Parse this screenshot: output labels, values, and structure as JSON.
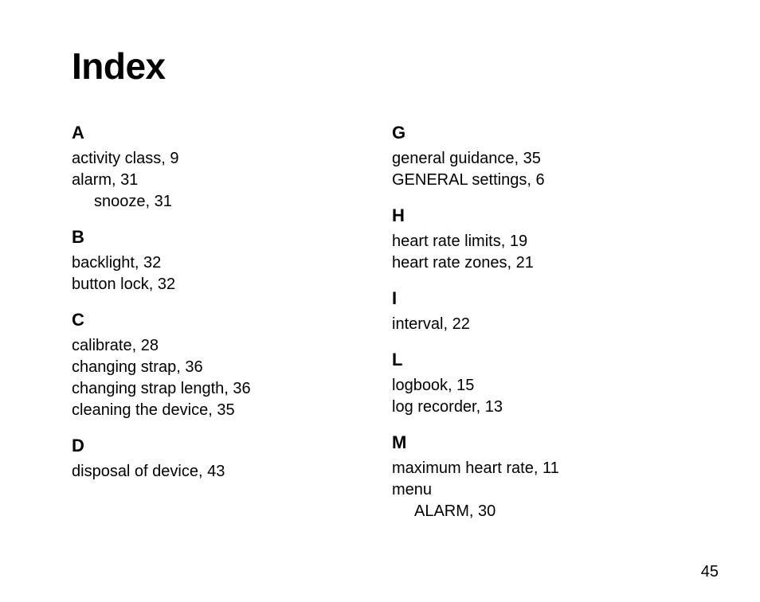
{
  "title": "Index",
  "page_number": "45",
  "text_color": "#000000",
  "background_color": "#ffffff",
  "title_fontsize": 46,
  "letter_fontsize": 22,
  "entry_fontsize": 20,
  "left_column": [
    {
      "letter": "A",
      "entries": [
        {
          "text": "activity class, 9",
          "sub": false
        },
        {
          "text": "alarm, 31",
          "sub": false
        },
        {
          "text": "snooze, 31",
          "sub": true
        }
      ]
    },
    {
      "letter": "B",
      "entries": [
        {
          "text": "backlight, 32",
          "sub": false
        },
        {
          "text": "button lock, 32",
          "sub": false
        }
      ]
    },
    {
      "letter": "C",
      "entries": [
        {
          "text": "calibrate, 28",
          "sub": false
        },
        {
          "text": "changing strap, 36",
          "sub": false
        },
        {
          "text": "changing strap length, 36",
          "sub": false
        },
        {
          "text": "cleaning the device, 35",
          "sub": false
        }
      ]
    },
    {
      "letter": "D",
      "entries": [
        {
          "text": "disposal of device, 43",
          "sub": false
        }
      ]
    }
  ],
  "right_column": [
    {
      "letter": "G",
      "entries": [
        {
          "text": "general guidance, 35",
          "sub": false
        },
        {
          "text": "GENERAL settings, 6",
          "sub": false
        }
      ]
    },
    {
      "letter": "H",
      "entries": [
        {
          "text": "heart rate limits, 19",
          "sub": false
        },
        {
          "text": "heart rate zones, 21",
          "sub": false
        }
      ]
    },
    {
      "letter": "I",
      "entries": [
        {
          "text": "interval, 22",
          "sub": false
        }
      ]
    },
    {
      "letter": "L",
      "entries": [
        {
          "text": "logbook, 15",
          "sub": false
        },
        {
          "text": "log recorder, 13",
          "sub": false
        }
      ]
    },
    {
      "letter": "M",
      "entries": [
        {
          "text": "maximum heart rate, 11",
          "sub": false
        },
        {
          "text": "menu",
          "sub": false
        },
        {
          "text": "ALARM, 30",
          "sub": true
        }
      ]
    }
  ]
}
